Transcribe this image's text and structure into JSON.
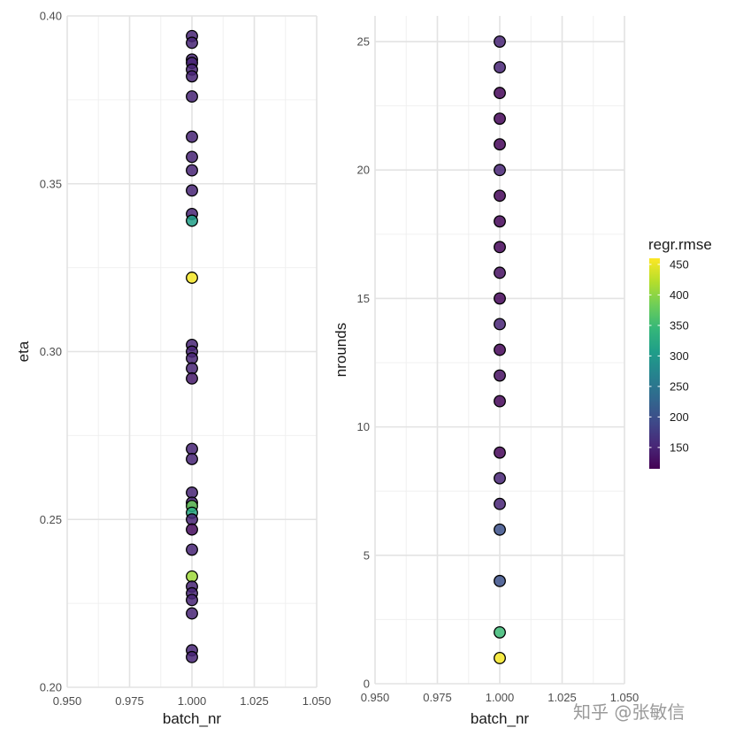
{
  "chart_data": [
    {
      "type": "scatter",
      "xlabel": "batch_nr",
      "ylabel": "eta",
      "xlim": [
        0.95,
        1.05
      ],
      "ylim": [
        0.2,
        0.4
      ],
      "x_ticks": [
        "0.950",
        "0.975",
        "1.000",
        "1.025",
        "1.050"
      ],
      "y_ticks": [
        "0.20",
        "0.25",
        "0.30",
        "0.35",
        "0.40"
      ],
      "grid": true,
      "points": [
        {
          "x": 1.0,
          "y": 0.394,
          "rmse": 150
        },
        {
          "x": 1.0,
          "y": 0.392,
          "rmse": 150
        },
        {
          "x": 1.0,
          "y": 0.387,
          "rmse": 150
        },
        {
          "x": 1.0,
          "y": 0.386,
          "rmse": 150
        },
        {
          "x": 1.0,
          "y": 0.384,
          "rmse": 150
        },
        {
          "x": 1.0,
          "y": 0.382,
          "rmse": 150
        },
        {
          "x": 1.0,
          "y": 0.376,
          "rmse": 150
        },
        {
          "x": 1.0,
          "y": 0.364,
          "rmse": 150
        },
        {
          "x": 1.0,
          "y": 0.358,
          "rmse": 150
        },
        {
          "x": 1.0,
          "y": 0.354,
          "rmse": 150
        },
        {
          "x": 1.0,
          "y": 0.348,
          "rmse": 150
        },
        {
          "x": 1.0,
          "y": 0.341,
          "rmse": 150
        },
        {
          "x": 1.0,
          "y": 0.339,
          "rmse": 310
        },
        {
          "x": 1.0,
          "y": 0.322,
          "rmse": 455
        },
        {
          "x": 1.0,
          "y": 0.302,
          "rmse": 150
        },
        {
          "x": 1.0,
          "y": 0.3,
          "rmse": 150
        },
        {
          "x": 1.0,
          "y": 0.298,
          "rmse": 150
        },
        {
          "x": 1.0,
          "y": 0.295,
          "rmse": 150
        },
        {
          "x": 1.0,
          "y": 0.292,
          "rmse": 140
        },
        {
          "x": 1.0,
          "y": 0.271,
          "rmse": 150
        },
        {
          "x": 1.0,
          "y": 0.268,
          "rmse": 150
        },
        {
          "x": 1.0,
          "y": 0.258,
          "rmse": 150
        },
        {
          "x": 1.0,
          "y": 0.255,
          "rmse": 150
        },
        {
          "x": 1.0,
          "y": 0.254,
          "rmse": 380
        },
        {
          "x": 1.0,
          "y": 0.252,
          "rmse": 320
        },
        {
          "x": 1.0,
          "y": 0.25,
          "rmse": 150
        },
        {
          "x": 1.0,
          "y": 0.247,
          "rmse": 125
        },
        {
          "x": 1.0,
          "y": 0.241,
          "rmse": 150
        },
        {
          "x": 1.0,
          "y": 0.233,
          "rmse": 410
        },
        {
          "x": 1.0,
          "y": 0.23,
          "rmse": 150
        },
        {
          "x": 1.0,
          "y": 0.228,
          "rmse": 150
        },
        {
          "x": 1.0,
          "y": 0.226,
          "rmse": 150
        },
        {
          "x": 1.0,
          "y": 0.222,
          "rmse": 150
        },
        {
          "x": 1.0,
          "y": 0.211,
          "rmse": 150
        },
        {
          "x": 1.0,
          "y": 0.209,
          "rmse": 150
        }
      ]
    },
    {
      "type": "scatter",
      "xlabel": "batch_nr",
      "ylabel": "nrounds",
      "xlim": [
        0.95,
        1.05
      ],
      "ylim": [
        0,
        26
      ],
      "x_ticks": [
        "0.950",
        "0.975",
        "1.000",
        "1.025",
        "1.050"
      ],
      "y_ticks": [
        "0",
        "5",
        "10",
        "15",
        "20",
        "25"
      ],
      "grid": true,
      "points": [
        {
          "x": 1.0,
          "y": 25,
          "rmse": 150
        },
        {
          "x": 1.0,
          "y": 24,
          "rmse": 150
        },
        {
          "x": 1.0,
          "y": 23,
          "rmse": 120
        },
        {
          "x": 1.0,
          "y": 22,
          "rmse": 120
        },
        {
          "x": 1.0,
          "y": 21,
          "rmse": 120
        },
        {
          "x": 1.0,
          "y": 20,
          "rmse": 150
        },
        {
          "x": 1.0,
          "y": 19,
          "rmse": 120
        },
        {
          "x": 1.0,
          "y": 18,
          "rmse": 120
        },
        {
          "x": 1.0,
          "y": 17,
          "rmse": 120
        },
        {
          "x": 1.0,
          "y": 16,
          "rmse": 130
        },
        {
          "x": 1.0,
          "y": 15,
          "rmse": 120
        },
        {
          "x": 1.0,
          "y": 14,
          "rmse": 150
        },
        {
          "x": 1.0,
          "y": 13,
          "rmse": 120
        },
        {
          "x": 1.0,
          "y": 12,
          "rmse": 130
        },
        {
          "x": 1.0,
          "y": 11,
          "rmse": 120
        },
        {
          "x": 1.0,
          "y": 9,
          "rmse": 120
        },
        {
          "x": 1.0,
          "y": 8,
          "rmse": 150
        },
        {
          "x": 1.0,
          "y": 7,
          "rmse": 150
        },
        {
          "x": 1.0,
          "y": 6,
          "rmse": 200
        },
        {
          "x": 1.0,
          "y": 4,
          "rmse": 200
        },
        {
          "x": 1.0,
          "y": 2,
          "rmse": 350
        },
        {
          "x": 1.0,
          "y": 1,
          "rmse": 455
        }
      ]
    }
  ],
  "legend": {
    "title": "regr.rmse",
    "placement": "right",
    "min": 115,
    "max": 460,
    "ticks": [
      "450",
      "400",
      "350",
      "300",
      "250",
      "200",
      "150"
    ],
    "tick_values": [
      450,
      400,
      350,
      300,
      250,
      200,
      150
    ],
    "palette": [
      "#440154",
      "#482878",
      "#3e4989",
      "#31688e",
      "#26828e",
      "#1f9e89",
      "#35b779",
      "#6ece58",
      "#b5de2b",
      "#fde725"
    ]
  },
  "point_style": {
    "stroke": "#000000",
    "opacity": 0.85
  },
  "watermark": "知乎 @张敏信"
}
